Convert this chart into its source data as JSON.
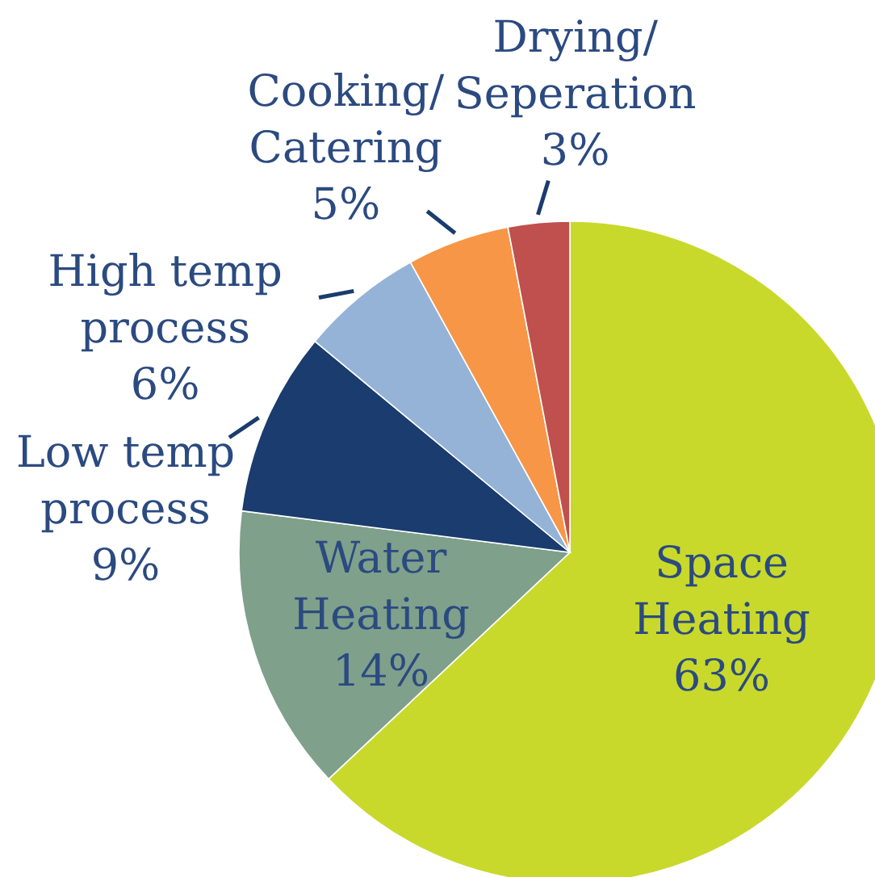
{
  "chart_data": {
    "type": "pie",
    "categories": [
      "Space Heating",
      "Water Heating",
      "Low temp process",
      "High temp process",
      "Cooking/ Catering",
      "Drying/ Seperation"
    ],
    "values": [
      63,
      14,
      9,
      6,
      5,
      3
    ],
    "value_labels": [
      "63%",
      "14%",
      "9%",
      "6%",
      "5%",
      "3%"
    ],
    "colors": [
      "#c8d92b",
      "#7fa08b",
      "#1a3c6e",
      "#95b3d7",
      "#f79646",
      "#c0504d"
    ]
  }
}
